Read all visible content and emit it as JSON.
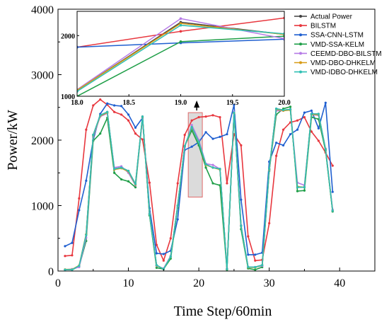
{
  "chart_data": [
    {
      "type": "line",
      "xlabel": "Time Step/60min",
      "ylabel": "Power/kW",
      "xlim": [
        0,
        45
      ],
      "ylim": [
        0,
        4000
      ],
      "x_ticks": [
        "0",
        "10",
        "20",
        "30",
        "40"
      ],
      "y_ticks": [
        "0",
        "1000",
        "2000",
        "3000",
        "4000"
      ],
      "grid": false,
      "x": [
        1,
        2,
        3,
        4,
        5,
        6,
        7,
        8,
        9,
        10,
        11,
        12,
        13,
        14,
        15,
        16,
        17,
        18,
        19,
        20,
        21,
        22,
        23,
        24,
        25,
        26,
        27,
        28,
        29,
        30,
        31,
        32,
        33,
        34,
        35,
        36,
        37,
        38,
        39
      ],
      "highlight_box": {
        "x_range": [
          18.5,
          20.5
        ],
        "y_range": [
          1130,
          2420
        ]
      },
      "series": [
        {
          "name": "Actual Power",
          "color": "#404040",
          "values": [
            20,
            20,
            80,
            560,
            2080,
            2380,
            2430,
            1560,
            1580,
            1530,
            1330,
            2360,
            870,
            90,
            30,
            220,
            1000,
            1910,
            2200,
            1970,
            1630,
            1580,
            1560,
            30,
            2420,
            690,
            60,
            60,
            90,
            1560,
            2480,
            2460,
            2470,
            1280,
            1280,
            2400,
            2400,
            1860,
            920
          ]
        },
        {
          "name": "BILSTM",
          "color": "#e8373e",
          "values": [
            230,
            240,
            1110,
            2160,
            2530,
            2620,
            2540,
            2430,
            2390,
            2300,
            2100,
            2010,
            1350,
            400,
            160,
            500,
            1340,
            2080,
            2300,
            2350,
            2360,
            2380,
            2350,
            1340,
            2090,
            1920,
            530,
            160,
            170,
            730,
            1760,
            2160,
            2270,
            2300,
            2350,
            2130,
            1990,
            1810,
            1610
          ]
        },
        {
          "name": "SSA-CNN-LSTM",
          "color": "#1f5fd0",
          "values": [
            380,
            430,
            930,
            1380,
            2000,
            2400,
            2560,
            2530,
            2520,
            2390,
            2190,
            2340,
            960,
            270,
            260,
            310,
            790,
            1850,
            1900,
            1970,
            2120,
            2020,
            2050,
            2090,
            2540,
            1090,
            250,
            250,
            280,
            1670,
            1960,
            1920,
            2090,
            2160,
            2420,
            2450,
            2180,
            2570,
            1210
          ]
        },
        {
          "name": "VMD-SSA-KELM",
          "color": "#1e9e47",
          "values": [
            20,
            20,
            70,
            460,
            1990,
            2100,
            2340,
            1500,
            1400,
            1370,
            1280,
            2350,
            850,
            50,
            30,
            190,
            970,
            1910,
            2150,
            1920,
            1580,
            1340,
            1310,
            20,
            2420,
            640,
            40,
            20,
            60,
            1530,
            2390,
            2480,
            2510,
            1220,
            1230,
            2350,
            2320,
            1840,
            910
          ]
        },
        {
          "name": "CEEMD-DBO-BILSTM",
          "color": "#b57ae6",
          "values": [
            20,
            30,
            60,
            510,
            2050,
            2360,
            2410,
            1580,
            1600,
            1500,
            1310,
            2330,
            880,
            80,
            40,
            230,
            990,
            1890,
            2230,
            2000,
            1640,
            1620,
            1560,
            40,
            2430,
            700,
            60,
            60,
            80,
            1540,
            2450,
            2450,
            2470,
            1350,
            1310,
            2390,
            2380,
            1870,
            940
          ]
        },
        {
          "name": "VMD-DBO-DHKELM",
          "color": "#d79b16",
          "values": [
            25,
            25,
            85,
            560,
            2070,
            2370,
            2420,
            1550,
            1570,
            1520,
            1320,
            2350,
            870,
            85,
            30,
            220,
            1000,
            1910,
            2190,
            1970,
            1620,
            1580,
            1550,
            30,
            2410,
            690,
            55,
            55,
            90,
            1550,
            2470,
            2450,
            2460,
            1290,
            1280,
            2390,
            2390,
            1860,
            920
          ]
        },
        {
          "name": "VMD-IDBO-DHKELM",
          "color": "#2fbfb4",
          "values": [
            20,
            20,
            80,
            550,
            2080,
            2380,
            2430,
            1560,
            1580,
            1530,
            1330,
            2360,
            870,
            90,
            30,
            220,
            1000,
            1910,
            2200,
            1970,
            1630,
            1580,
            1560,
            30,
            2420,
            690,
            60,
            60,
            90,
            1560,
            2480,
            2460,
            2470,
            1280,
            1280,
            2400,
            2400,
            1860,
            920
          ]
        }
      ]
    },
    {
      "type": "line",
      "inset": true,
      "xlim": [
        18.0,
        20.0
      ],
      "ylim": [
        1000,
        2400
      ],
      "x_ticks": [
        "18.0",
        "18.5",
        "19.0",
        "19.5",
        "20.0"
      ],
      "y_ticks": [
        "1000",
        "2000"
      ],
      "x": [
        18,
        19,
        20
      ],
      "series": [
        {
          "name": "Actual Power",
          "values": [
            1100,
            2220,
            2020
          ]
        },
        {
          "name": "BILSTM",
          "values": [
            1810,
            2070,
            2290
          ]
        },
        {
          "name": "SSA-CNN-LSTM",
          "values": [
            1810,
            1880,
            1940
          ]
        },
        {
          "name": "VMD-SSA-KELM",
          "values": [
            1000,
            1900,
            1990
          ]
        },
        {
          "name": "CEEMD-DBO-BILSTM",
          "values": [
            1110,
            2280,
            1950
          ]
        },
        {
          "name": "VMD-DBO-DHKELM",
          "values": [
            1100,
            2200,
            2020
          ]
        },
        {
          "name": "VMD-IDBO-DHKELM",
          "values": [
            1080,
            2170,
            2030
          ]
        }
      ]
    }
  ]
}
